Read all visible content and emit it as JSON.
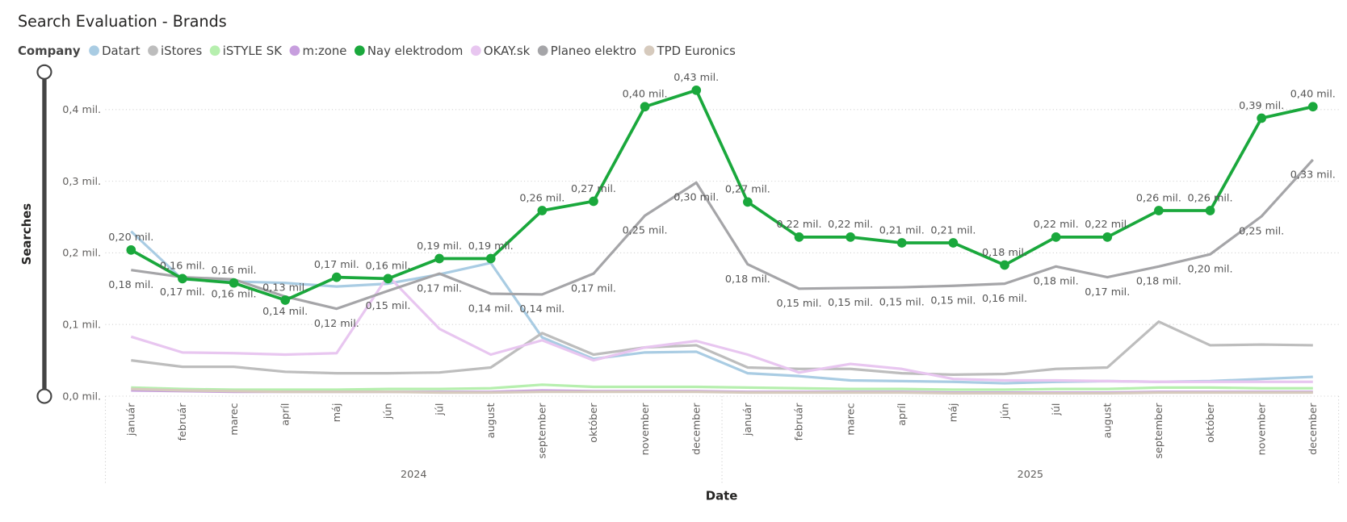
{
  "chart_data": {
    "type": "line",
    "title": "Search Evaluation - Brands",
    "legend_title": "Company",
    "y_label": "Searches",
    "x_label": "Date",
    "categories": [
      "január",
      "február",
      "marec",
      "apríl",
      "máj",
      "jún",
      "júl",
      "august",
      "september",
      "október",
      "november",
      "december",
      "január",
      "február",
      "marec",
      "apríl",
      "máj",
      "jún",
      "júl",
      "august",
      "september",
      "október",
      "november",
      "december"
    ],
    "years": [
      "2024",
      "2025"
    ],
    "ylim": [
      0,
      0.45
    ],
    "yticks": [
      {
        "value": 0,
        "label": "0,0 mil."
      },
      {
        "value": 0.1,
        "label": "0,1 mil."
      },
      {
        "value": 0.2,
        "label": "0,2 mil."
      },
      {
        "value": 0.3,
        "label": "0,3 mil."
      },
      {
        "value": 0.4,
        "label": "0,4 mil."
      }
    ],
    "grid": true,
    "legend_position": "top-left",
    "series": [
      {
        "name": "Datart",
        "color": "#a9cce3",
        "values": [
          0.23,
          0.163,
          0.16,
          0.158,
          0.153,
          0.157,
          0.17,
          0.186,
          0.082,
          0.052,
          0.061,
          0.062,
          0.032,
          0.028,
          0.022,
          0.021,
          0.02,
          0.018,
          0.02,
          0.021,
          0.02,
          0.021,
          0.024,
          0.027
        ]
      },
      {
        "name": "iStores",
        "color": "#bdbdbd",
        "values": [
          0.05,
          0.041,
          0.041,
          0.034,
          0.032,
          0.032,
          0.033,
          0.04,
          0.088,
          0.058,
          0.068,
          0.071,
          0.04,
          0.038,
          0.038,
          0.032,
          0.03,
          0.031,
          0.038,
          0.04,
          0.104,
          0.071,
          0.072,
          0.071
        ]
      },
      {
        "name": "iSTYLE SK",
        "color": "#b6efae",
        "values": [
          0.012,
          0.01,
          0.009,
          0.009,
          0.009,
          0.01,
          0.01,
          0.011,
          0.016,
          0.013,
          0.013,
          0.013,
          0.012,
          0.011,
          0.01,
          0.01,
          0.009,
          0.009,
          0.01,
          0.01,
          0.012,
          0.012,
          0.011,
          0.011
        ]
      },
      {
        "name": "m:zone",
        "color": "#c79ede",
        "values": [
          0.008,
          0.007,
          0.006,
          0.006,
          0.006,
          0.006,
          0.006,
          0.006,
          0.008,
          0.007,
          0.007,
          0.007,
          0.006,
          0.006,
          0.006,
          0.006,
          0.005,
          0.005,
          0.005,
          0.005,
          0.006,
          0.006,
          0.006,
          0.006
        ]
      },
      {
        "name": "Nay elektrodom",
        "color": "#1aa83c",
        "markers": true,
        "values": [
          0.204,
          0.164,
          0.158,
          0.134,
          0.166,
          0.164,
          0.192,
          0.192,
          0.259,
          0.272,
          0.404,
          0.427,
          0.271,
          0.222,
          0.222,
          0.214,
          0.214,
          0.183,
          0.222,
          0.222,
          0.259,
          0.259,
          0.388,
          0.404
        ],
        "value_labels": [
          "0,20 mil.",
          "0,16 mil.",
          "0,16 mil.",
          "0,13 mil.",
          "0,17 mil.",
          "0,16 mil.",
          "0,19 mil.",
          "0,19 mil.",
          "0,26 mil.",
          "0,27 mil.",
          "0,40 mil.",
          "0,43 mil.",
          "0,27 mil.",
          "0,22 mil.",
          "0,22 mil.",
          "0,21 mil.",
          "0,21 mil.",
          "0,18 mil.",
          "0,22 mil.",
          "0,22 mil.",
          "0,26 mil.",
          "0,26 mil.",
          "0,39 mil.",
          "0,40 mil."
        ]
      },
      {
        "name": "OKAY.sk",
        "color": "#e8c6f0",
        "values": [
          0.083,
          0.061,
          0.06,
          0.058,
          0.06,
          0.168,
          0.094,
          0.058,
          0.078,
          0.05,
          0.068,
          0.077,
          0.058,
          0.033,
          0.045,
          0.038,
          0.024,
          0.022,
          0.022,
          0.021,
          0.02,
          0.02,
          0.02,
          0.02
        ]
      },
      {
        "name": "Planeo elektro",
        "color": "#a5a5a8",
        "values": [
          0.176,
          0.166,
          0.163,
          0.139,
          0.122,
          0.147,
          0.171,
          0.143,
          0.142,
          0.171,
          0.252,
          0.298,
          0.184,
          0.15,
          0.151,
          0.152,
          0.154,
          0.157,
          0.181,
          0.166,
          0.181,
          0.198,
          0.251,
          0.33
        ],
        "value_labels": [
          "0,18 mil.",
          "0,17 mil.",
          "0,16 mil.",
          "0,14 mil.",
          "0,12 mil.",
          "0,15 mil.",
          "0,17 mil.",
          "0,14 mil.",
          "0,14 mil.",
          "0,17 mil.",
          "0,25 mil.",
          "0,30 mil.",
          "0,18 mil.",
          "0,15 mil.",
          "0,15 mil.",
          "0,15 mil.",
          "0,15 mil.",
          "0,16 mil.",
          "0,18 mil.",
          "0,17 mil.",
          "0,18 mil.",
          "0,20 mil.",
          "0,25 mil.",
          "0,33 mil."
        ]
      },
      {
        "name": "TPD Euronics",
        "color": "#d6cabd",
        "values": [
          0.01,
          0.008,
          0.007,
          0.006,
          0.006,
          0.006,
          0.005,
          0.005,
          0.006,
          0.006,
          0.006,
          0.006,
          0.005,
          0.005,
          0.005,
          0.005,
          0.004,
          0.004,
          0.004,
          0.004,
          0.005,
          0.005,
          0.005,
          0.005
        ]
      }
    ]
  }
}
